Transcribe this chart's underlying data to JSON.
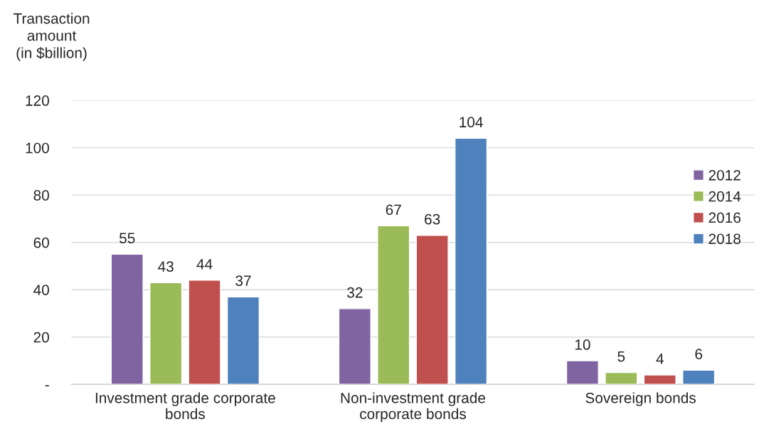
{
  "chart_data": {
    "type": "bar",
    "ylabel": "Transaction\namount\n(in $billion)",
    "categories": [
      "Investment grade corporate\nbonds",
      "Non-investment grade\ncorporate bonds",
      "Sovereign bonds"
    ],
    "series": [
      {
        "name": "2012",
        "color": "#8064a2",
        "values": [
          55,
          32,
          10
        ]
      },
      {
        "name": "2014",
        "color": "#9bbb59",
        "values": [
          43,
          67,
          5
        ]
      },
      {
        "name": "2016",
        "color": "#c0504d",
        "values": [
          44,
          63,
          4
        ]
      },
      {
        "name": "2018",
        "color": "#4f81bd",
        "values": [
          37,
          104,
          6
        ]
      }
    ],
    "ylim": [
      0,
      120
    ],
    "yticks": [
      {
        "value": 0,
        "label": "-"
      },
      20,
      40,
      60,
      80,
      100,
      120
    ],
    "grid": "y",
    "legend": "right",
    "data_labels": true
  }
}
